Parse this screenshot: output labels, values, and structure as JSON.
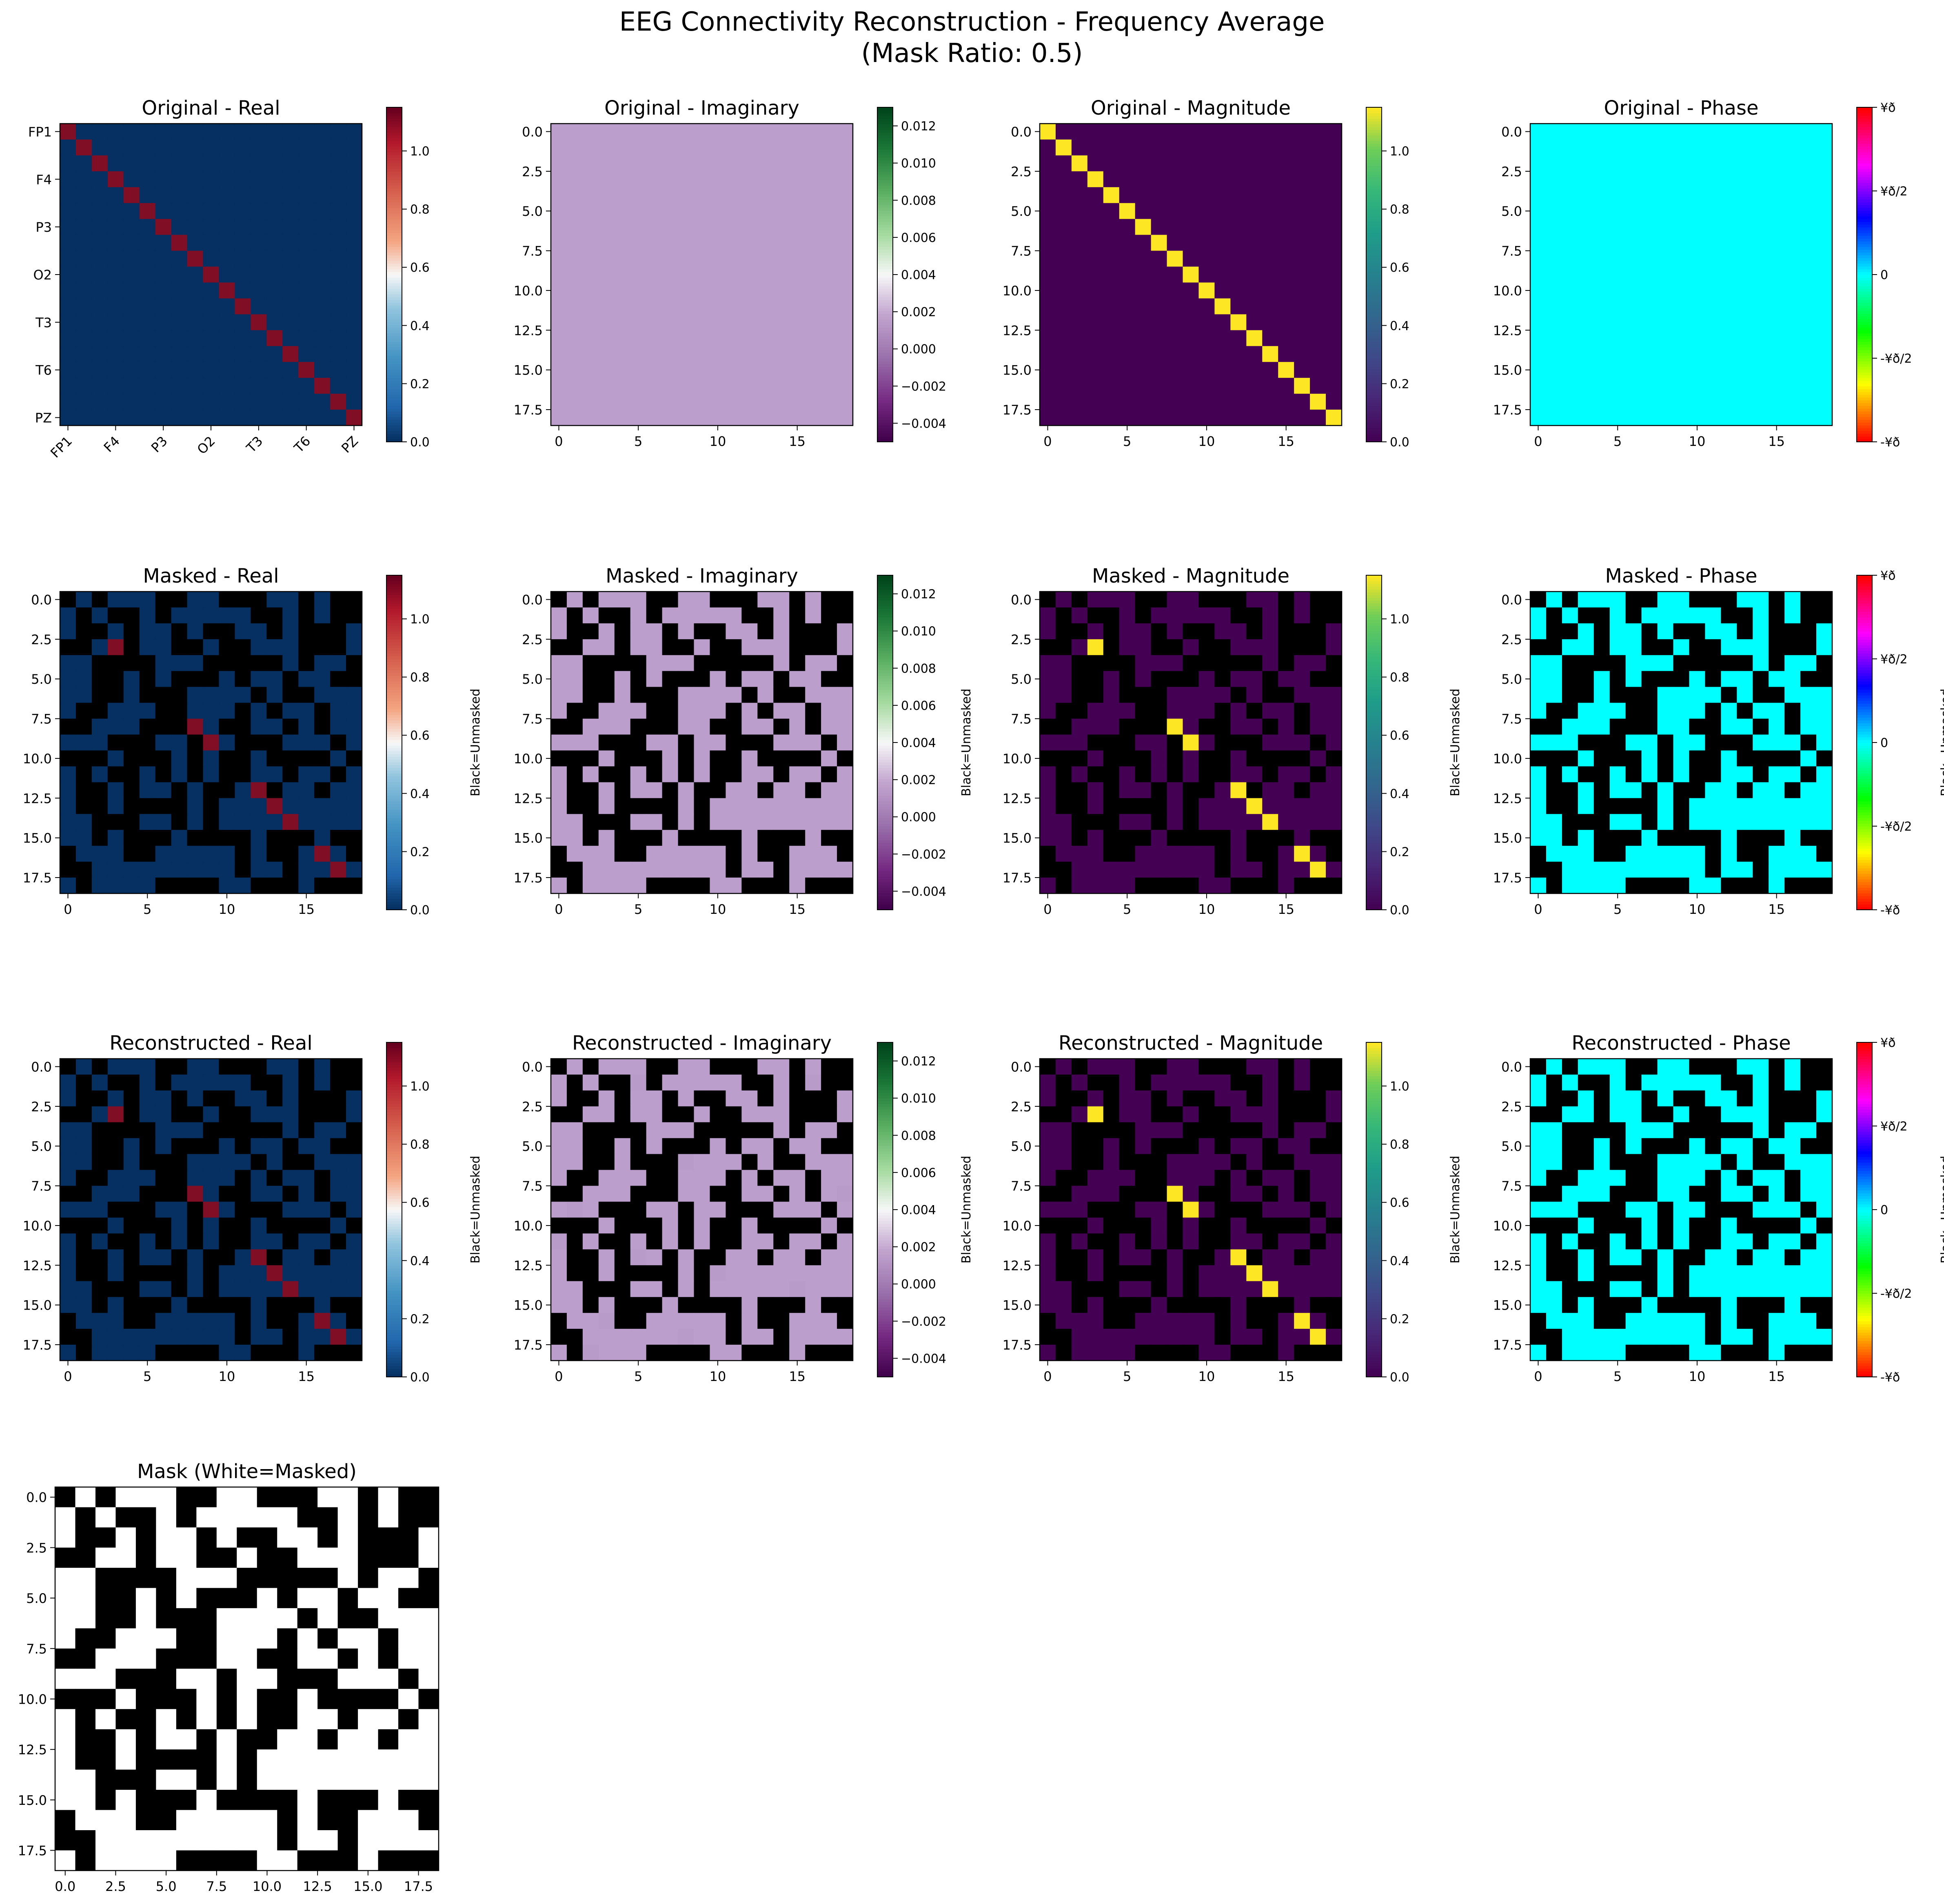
{
  "figure": {
    "title_line1": "EEG Connectivity Reconstruction - Frequency Average",
    "title_line2": "(Mask Ratio: 0.5)"
  },
  "chart_data": {
    "type": "heatmap",
    "n": 19,
    "channel_labels": [
      "FP1",
      "F4",
      "P3",
      "O2",
      "T3",
      "T6",
      "PZ"
    ],
    "channel_label_positions": [
      0,
      3,
      6,
      9,
      12,
      15,
      18
    ],
    "mask_grid": [
      "0101110011000110100",
      "1010010111110010100",
      "1001011010011010001",
      "0011011001001110001",
      "1100001110000010110",
      "1100101000101101100",
      "1100100011110100111",
      "1001110011101011011",
      "0011100011001101011",
      "1110001101100011101",
      "0001000101001000010",
      "1010010101001101101",
      "1001011010011011011",
      "1001000010111111111",
      "1100011010111111111",
      "1101000100001000100",
      "0111001111101001110",
      "0011111111101101111",
      "1011110000110001000"
    ],
    "rows": [
      {
        "panels": [
          {
            "title": "Original - Real",
            "kind": "real",
            "masked": false,
            "axis": "channels",
            "cmap": "RdBu_r",
            "cbar_ticks": [
              "0.0",
              "0.2",
              "0.4",
              "0.6",
              "0.8",
              "1.0"
            ],
            "cbar_range": [
              0,
              1.15
            ],
            "cbar_label": ""
          },
          {
            "title": "Original - Imaginary",
            "kind": "imag",
            "masked": false,
            "axis": "numeric",
            "cmap": "PRGn",
            "cbar_ticks": [
              "−0.004",
              "−0.002",
              "0.000",
              "0.002",
              "0.004",
              "0.006",
              "0.008",
              "0.010",
              "0.012"
            ],
            "cbar_range": [
              -0.005,
              0.013
            ],
            "cbar_label": ""
          },
          {
            "title": "Original - Magnitude",
            "kind": "mag",
            "masked": false,
            "axis": "numeric",
            "cmap": "viridis",
            "cbar_ticks": [
              "0.0",
              "0.2",
              "0.4",
              "0.6",
              "0.8",
              "1.0"
            ],
            "cbar_range": [
              0,
              1.15
            ],
            "cbar_label": ""
          },
          {
            "title": "Original - Phase",
            "kind": "phase",
            "masked": false,
            "axis": "numeric",
            "cmap": "hsv",
            "cbar_ticks": [
              "-¥ð",
              "-¥ð/2",
              "0",
              "¥ð/2",
              "¥ð"
            ],
            "cbar_range": [
              -3.1416,
              3.1416
            ],
            "cbar_label": ""
          }
        ]
      },
      {
        "panels": [
          {
            "title": "Masked - Real",
            "kind": "real",
            "masked": true,
            "axis": "numeric",
            "cmap": "RdBu_r",
            "cbar_ticks": [
              "0.0",
              "0.2",
              "0.4",
              "0.6",
              "0.8",
              "1.0"
            ],
            "cbar_range": [
              0,
              1.15
            ],
            "cbar_label": "Black=Unmasked"
          },
          {
            "title": "Masked - Imaginary",
            "kind": "imag",
            "masked": true,
            "axis": "numeric",
            "cmap": "PRGn",
            "cbar_ticks": [
              "−0.004",
              "−0.002",
              "0.000",
              "0.002",
              "0.004",
              "0.006",
              "0.008",
              "0.010",
              "0.012"
            ],
            "cbar_range": [
              -0.005,
              0.013
            ],
            "cbar_label": "Black=Unmasked"
          },
          {
            "title": "Masked - Magnitude",
            "kind": "mag",
            "masked": true,
            "axis": "numeric",
            "cmap": "viridis",
            "cbar_ticks": [
              "0.0",
              "0.2",
              "0.4",
              "0.6",
              "0.8",
              "1.0"
            ],
            "cbar_range": [
              0,
              1.15
            ],
            "cbar_label": "Black=Unmasked"
          },
          {
            "title": "Masked - Phase",
            "kind": "phase",
            "masked": true,
            "axis": "numeric",
            "cmap": "hsv",
            "cbar_ticks": [
              "-¥ð",
              "-¥ð/2",
              "0",
              "¥ð/2",
              "¥ð"
            ],
            "cbar_range": [
              -3.1416,
              3.1416
            ],
            "cbar_label": "Black=Unmasked"
          }
        ]
      },
      {
        "panels": [
          {
            "title": "Reconstructed - Real",
            "kind": "real",
            "masked": true,
            "axis": "numeric",
            "cmap": "RdBu_r",
            "cbar_ticks": [
              "0.0",
              "0.2",
              "0.4",
              "0.6",
              "0.8",
              "1.0"
            ],
            "cbar_range": [
              0,
              1.15
            ],
            "cbar_label": "Black=Unmasked"
          },
          {
            "title": "Reconstructed - Imaginary",
            "kind": "imag",
            "masked": true,
            "axis": "numeric",
            "cmap": "PRGn",
            "cbar_ticks": [
              "−0.004",
              "−0.002",
              "0.000",
              "0.002",
              "0.004",
              "0.006",
              "0.008",
              "0.010",
              "0.012"
            ],
            "cbar_range": [
              -0.005,
              0.013
            ],
            "cbar_label": "Black=Unmasked"
          },
          {
            "title": "Reconstructed - Magnitude",
            "kind": "mag",
            "masked": true,
            "axis": "numeric",
            "cmap": "viridis",
            "cbar_ticks": [
              "0.0",
              "0.2",
              "0.4",
              "0.6",
              "0.8",
              "1.0"
            ],
            "cbar_range": [
              0,
              1.15
            ],
            "cbar_label": "Black=Unmasked"
          },
          {
            "title": "Reconstructed - Phase",
            "kind": "phase",
            "masked": true,
            "axis": "numeric",
            "cmap": "hsv",
            "cbar_ticks": [
              "-¥ð",
              "-¥ð/2",
              "0",
              "¥ð/2",
              "¥ð"
            ],
            "cbar_range": [
              -3.1416,
              3.1416
            ],
            "cbar_label": "Black=Unmasked"
          }
        ]
      }
    ],
    "mask_panel": {
      "title": "Mask (White=Masked)",
      "xticks": [
        "0.0",
        "2.5",
        "5.0",
        "7.5",
        "10.0",
        "12.5",
        "15.0",
        "17.5"
      ]
    },
    "numeric_xticks": [
      "0",
      "5",
      "10",
      "15"
    ],
    "numeric_yticks": [
      "0.0",
      "2.5",
      "5.0",
      "7.5",
      "10.0",
      "12.5",
      "15.0",
      "17.5"
    ],
    "values": {
      "real": {
        "diagonal": 1.12,
        "off_diagonal": 0.0
      },
      "imag": {
        "all": 0.0
      },
      "mag": {
        "diagonal": 1.12,
        "off_diagonal": 0.0
      },
      "phase": {
        "all": 0.0
      }
    },
    "colors": {
      "real_low": "#053061",
      "real_high": "#800e24",
      "imag_low": "#420448",
      "imag_zero": "#bb9ecb",
      "imag_high": "#0b5c26",
      "mag_low": "#440154",
      "mag_high": "#fde725",
      "phase_zero": "#00ffff",
      "masked_black": "#000000",
      "mask_white": "#ffffff"
    }
  }
}
